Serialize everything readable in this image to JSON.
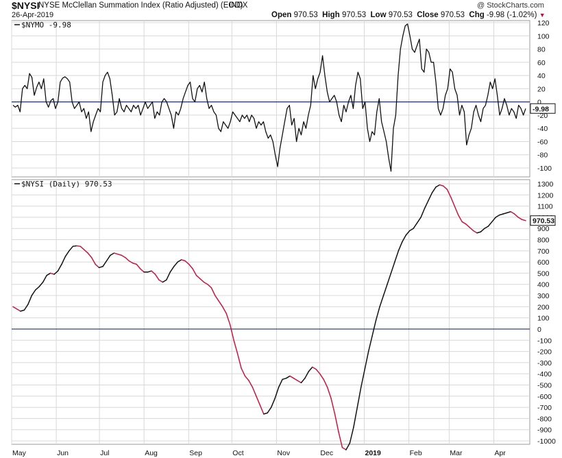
{
  "header": {
    "symbol": "$NYSI",
    "name": "NYSE McClellan Summation Index (Ratio Adjusted) (EOD)",
    "exchange": "INDX",
    "date": "26-Apr-2019",
    "watermark": "@ StockCharts.com",
    "open_label": "Open",
    "open": "970.53",
    "high_label": "High",
    "high": "970.53",
    "low_label": "Low",
    "low": "970.53",
    "close_label": "Close",
    "close": "970.53",
    "chg_label": "Chg",
    "chg": "-9.98 (-1.02%)",
    "chg_arrow": "▼"
  },
  "colors": {
    "line": "#111111",
    "decline": "#c8173f",
    "zero_line": "#1c2c7a",
    "grid": "#d8d8d8"
  },
  "chart_data": [
    {
      "type": "line",
      "pane": "top",
      "label": "$NYMO -9.98",
      "last_value": "-9.98",
      "ylim": [
        -110,
        125
      ],
      "yticks": [
        -100,
        -80,
        -60,
        -40,
        -20,
        0,
        20,
        40,
        60,
        80,
        100,
        120
      ],
      "zero_line": true,
      "series": [
        {
          "values": [
            -5,
            -8,
            -5,
            -15,
            20,
            25,
            20,
            43,
            37,
            10,
            22,
            30,
            20,
            35,
            0,
            -8,
            2,
            5,
            -10,
            0,
            30,
            36,
            38,
            35,
            30,
            0,
            -10,
            -5,
            0,
            -15,
            -10,
            -25,
            -15,
            -45,
            -30,
            -20,
            -10,
            -15,
            30,
            40,
            45,
            35,
            10,
            -20,
            -15,
            5,
            -10,
            -15,
            -5,
            -10,
            -15,
            -5,
            -10,
            -5,
            -20,
            -10,
            0,
            -10,
            -5,
            0,
            -25,
            -15,
            -20,
            0,
            5,
            0,
            -10,
            -20,
            -40,
            -15,
            -20,
            -10,
            5,
            15,
            25,
            30,
            5,
            0,
            20,
            25,
            15,
            30,
            5,
            -10,
            -5,
            -15,
            -20,
            -40,
            -45,
            -30,
            -35,
            -40,
            -30,
            -15,
            -20,
            -25,
            -30,
            -20,
            -25,
            -20,
            -30,
            -20,
            -25,
            -40,
            -30,
            -35,
            -30,
            -45,
            -55,
            -50,
            -60,
            -80,
            -98,
            -70,
            -50,
            -30,
            -10,
            -5,
            -35,
            -25,
            -60,
            -40,
            -50,
            -30,
            -40,
            -20,
            -5,
            40,
            20,
            35,
            45,
            70,
            40,
            15,
            0,
            5,
            10,
            0,
            -20,
            -30,
            -5,
            -15,
            0,
            10,
            -10,
            25,
            45,
            35,
            -10,
            0,
            -40,
            -60,
            -45,
            -50,
            -15,
            5,
            -30,
            -45,
            -60,
            -85,
            -105,
            -40,
            -20,
            40,
            80,
            100,
            115,
            118,
            100,
            80,
            75,
            85,
            95,
            50,
            45,
            80,
            75,
            60,
            60,
            30,
            -10,
            -20,
            -10,
            10,
            20,
            50,
            45,
            20,
            10,
            -20,
            -5,
            -15,
            -65,
            -50,
            -40,
            -15,
            -5,
            -20,
            -30,
            -10,
            -5,
            10,
            30,
            20,
            35,
            10,
            -20,
            -10,
            5,
            -5,
            -20,
            -10,
            -15,
            -25,
            -5,
            -10,
            -20,
            -10
          ]
        }
      ]
    },
    {
      "type": "line",
      "pane": "bottom",
      "label": "$NYSI (Daily) 970.53",
      "last_value": "970.53",
      "ylim": [
        -1080,
        1310
      ],
      "yticks": [
        -1000,
        -900,
        -800,
        -700,
        -600,
        -500,
        -400,
        -300,
        -200,
        -100,
        0,
        100,
        200,
        300,
        400,
        500,
        600,
        700,
        800,
        900,
        1000,
        1100,
        1200,
        1300
      ],
      "zero_line": true,
      "series": [
        {
          "values": [
            200,
            180,
            160,
            170,
            220,
            300,
            350,
            380,
            420,
            480,
            500,
            490,
            520,
            580,
            650,
            700,
            740,
            745,
            740,
            710,
            680,
            640,
            580,
            550,
            560,
            610,
            660,
            680,
            670,
            660,
            640,
            610,
            590,
            580,
            540,
            510,
            510,
            520,
            490,
            440,
            420,
            440,
            510,
            560,
            600,
            620,
            610,
            580,
            540,
            480,
            450,
            420,
            400,
            370,
            300,
            250,
            200,
            140,
            40,
            -100,
            -220,
            -350,
            -420,
            -460,
            -520,
            -600,
            -680,
            -760,
            -750,
            -700,
            -620,
            -520,
            -450,
            -440,
            -420,
            -440,
            -460,
            -480,
            -440,
            -380,
            -340,
            -360,
            -400,
            -450,
            -520,
            -620,
            -760,
            -920,
            -1060,
            -1080,
            -1020,
            -880,
            -700,
            -520,
            -360,
            -200,
            -60,
            80,
            200,
            300,
            400,
            500,
            600,
            700,
            780,
            840,
            880,
            900,
            950,
            1000,
            1080,
            1150,
            1220,
            1270,
            1290,
            1280,
            1250,
            1180,
            1100,
            1020,
            960,
            940,
            910,
            880,
            860,
            870,
            900,
            920,
            960,
            1000,
            1020,
            1030,
            1040,
            1050,
            1030,
            1000,
            980,
            970
          ]
        }
      ]
    }
  ],
  "x_axis": {
    "labels": [
      {
        "text": "May",
        "day": 0
      },
      {
        "text": "Jun",
        "day": 31
      },
      {
        "text": "Jul",
        "day": 61
      },
      {
        "text": "Aug",
        "day": 92
      },
      {
        "text": "Sep",
        "day": 123
      },
      {
        "text": "Oct",
        "day": 153
      },
      {
        "text": "Nov",
        "day": 184
      },
      {
        "text": "Dec",
        "day": 214
      },
      {
        "text": "2019",
        "day": 245,
        "bold": true
      },
      {
        "text": "Feb",
        "day": 276
      },
      {
        "text": "Mar",
        "day": 304
      },
      {
        "text": "Apr",
        "day": 335
      }
    ],
    "span_days": 360
  }
}
